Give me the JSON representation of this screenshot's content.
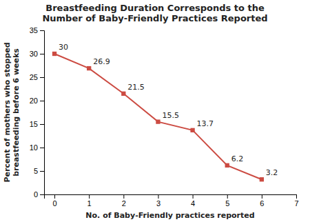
{
  "chart_data": {
    "type": "line",
    "title": "Breastfeeding Duration Corresponds to the\nNumber of Baby-Friendly Practices Reported",
    "xlabel": "No. of Baby-Friendly practices reported",
    "ylabel": "Percent of mothers who stopped\nbreastfeeding before 6 weeks",
    "x": [
      0,
      1,
      2,
      3,
      4,
      5,
      6
    ],
    "values": [
      30,
      26.9,
      21.5,
      15.5,
      13.7,
      6.2,
      3.2
    ],
    "color": "#cc4b42",
    "marker": "square",
    "data_labels": true,
    "xlim": [
      -0.3,
      7
    ],
    "ylim": [
      0,
      35
    ],
    "xticks": [
      0,
      1,
      2,
      3,
      4,
      5,
      6,
      7
    ],
    "yticks": [
      0,
      5,
      10,
      15,
      20,
      25,
      30,
      35
    ],
    "grid": false
  }
}
